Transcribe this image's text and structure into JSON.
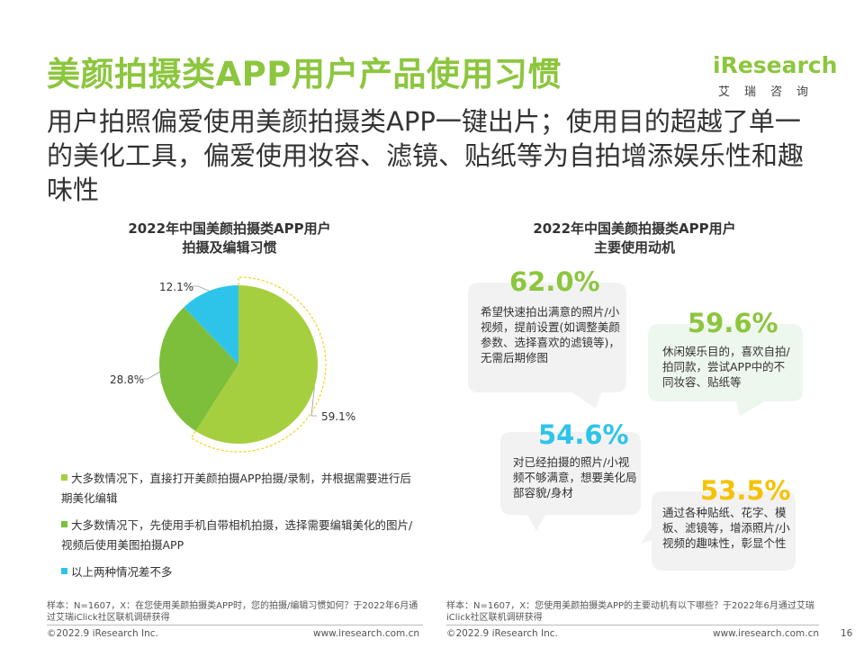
{
  "header": {
    "title": "美颜拍摄类APP用户产品使用习惯",
    "logo_name": "iResearch",
    "logo_cn": "艾瑞咨询",
    "subtitle": "用户拍照偏爱使用美颜拍摄类APP一键出片；使用目的超越了单一的美化工具，偏爱使用妆容、滤镜、贴纸等为自拍增添娱乐性和趣味性"
  },
  "left_chart": {
    "title_line1": "2022年中国美颜拍摄类APP用户",
    "title_line2": "拍摄及编辑习惯",
    "legend": [
      {
        "text": "大多数情况下，直接打开美颜拍摄APP拍摄/录制，并根据需要进行后期美化编辑",
        "color": "#a6cf3f"
      },
      {
        "text": "大多数情况下，先使用手机自带相机拍摄，选择需要编辑美化的图片/视频后使用美图拍摄APP",
        "color": "#7dbf3b"
      },
      {
        "text": "以上两种情况差不多",
        "color": "#2ec4ea"
      }
    ],
    "note": "样本：N=1607，X：在您使用美颜拍摄类APP时，您的拍摄/编辑习惯如何？于2022年6月通过艾瑞iClick社区联机调研获得"
  },
  "right_chart": {
    "title_line1": "2022年中国美颜拍摄类APP用户",
    "title_line2": "主要使用动机",
    "note": "样本：N=1607，X：您使用美颜拍摄类APP的主要动机有以下哪些？于2022年6月通过艾瑞iClick社区联机调研获得"
  },
  "chart_data": [
    {
      "type": "pie",
      "title": "2022年中国美颜拍摄类APP用户拍摄及编辑习惯",
      "categories": [
        "大多数情况下，直接打开美颜拍摄APP拍摄/录制，并根据需要进行后期美化编辑",
        "大多数情况下，先使用手机自带相机拍摄，选择需要编辑美化的图片/视频后使用美图拍摄APP",
        "以上两种情况差不多"
      ],
      "values": [
        59.1,
        28.8,
        12.1
      ],
      "labels": [
        "59.1%",
        "28.8%",
        "12.1%"
      ],
      "colors": [
        "#a6cf3f",
        "#7dbf3b",
        "#2ec4ea"
      ]
    },
    {
      "type": "table",
      "title": "2022年中国美颜拍摄类APP用户主要使用动机",
      "items": [
        {
          "value": 62.0,
          "label": "62.0%",
          "text": "希望快速拍出满意的照片/小视频，提前设置(如调整美颜参数、选择喜欢的滤镜等)，无需后期修图",
          "color": "#8cc63e"
        },
        {
          "value": 59.6,
          "label": "59.6%",
          "text": "休闲娱乐目的，喜欢自拍/拍同款，尝试APP中的不同妆容、贴纸等",
          "color": "#8cc63e"
        },
        {
          "value": 54.6,
          "label": "54.6%",
          "text": "对已经拍摄的照片/小视频不够满意，想要美化局部容貌/身材",
          "color": "#2ec4ea"
        },
        {
          "value": 53.5,
          "label": "53.5%",
          "text": "通过各种贴纸、花字、模板、滤镜等，增添照片/小视频的趣味性，彰显个性",
          "color": "#f5c200"
        }
      ]
    }
  ],
  "footer": {
    "copyright_left": "©2022.9 iResearch Inc.",
    "url_left": "www.iresearch.com.cn",
    "copyright_right": "©2022.9 iResearch Inc.",
    "url_right": "www.iresearch.com.cn",
    "page_number": "16"
  }
}
